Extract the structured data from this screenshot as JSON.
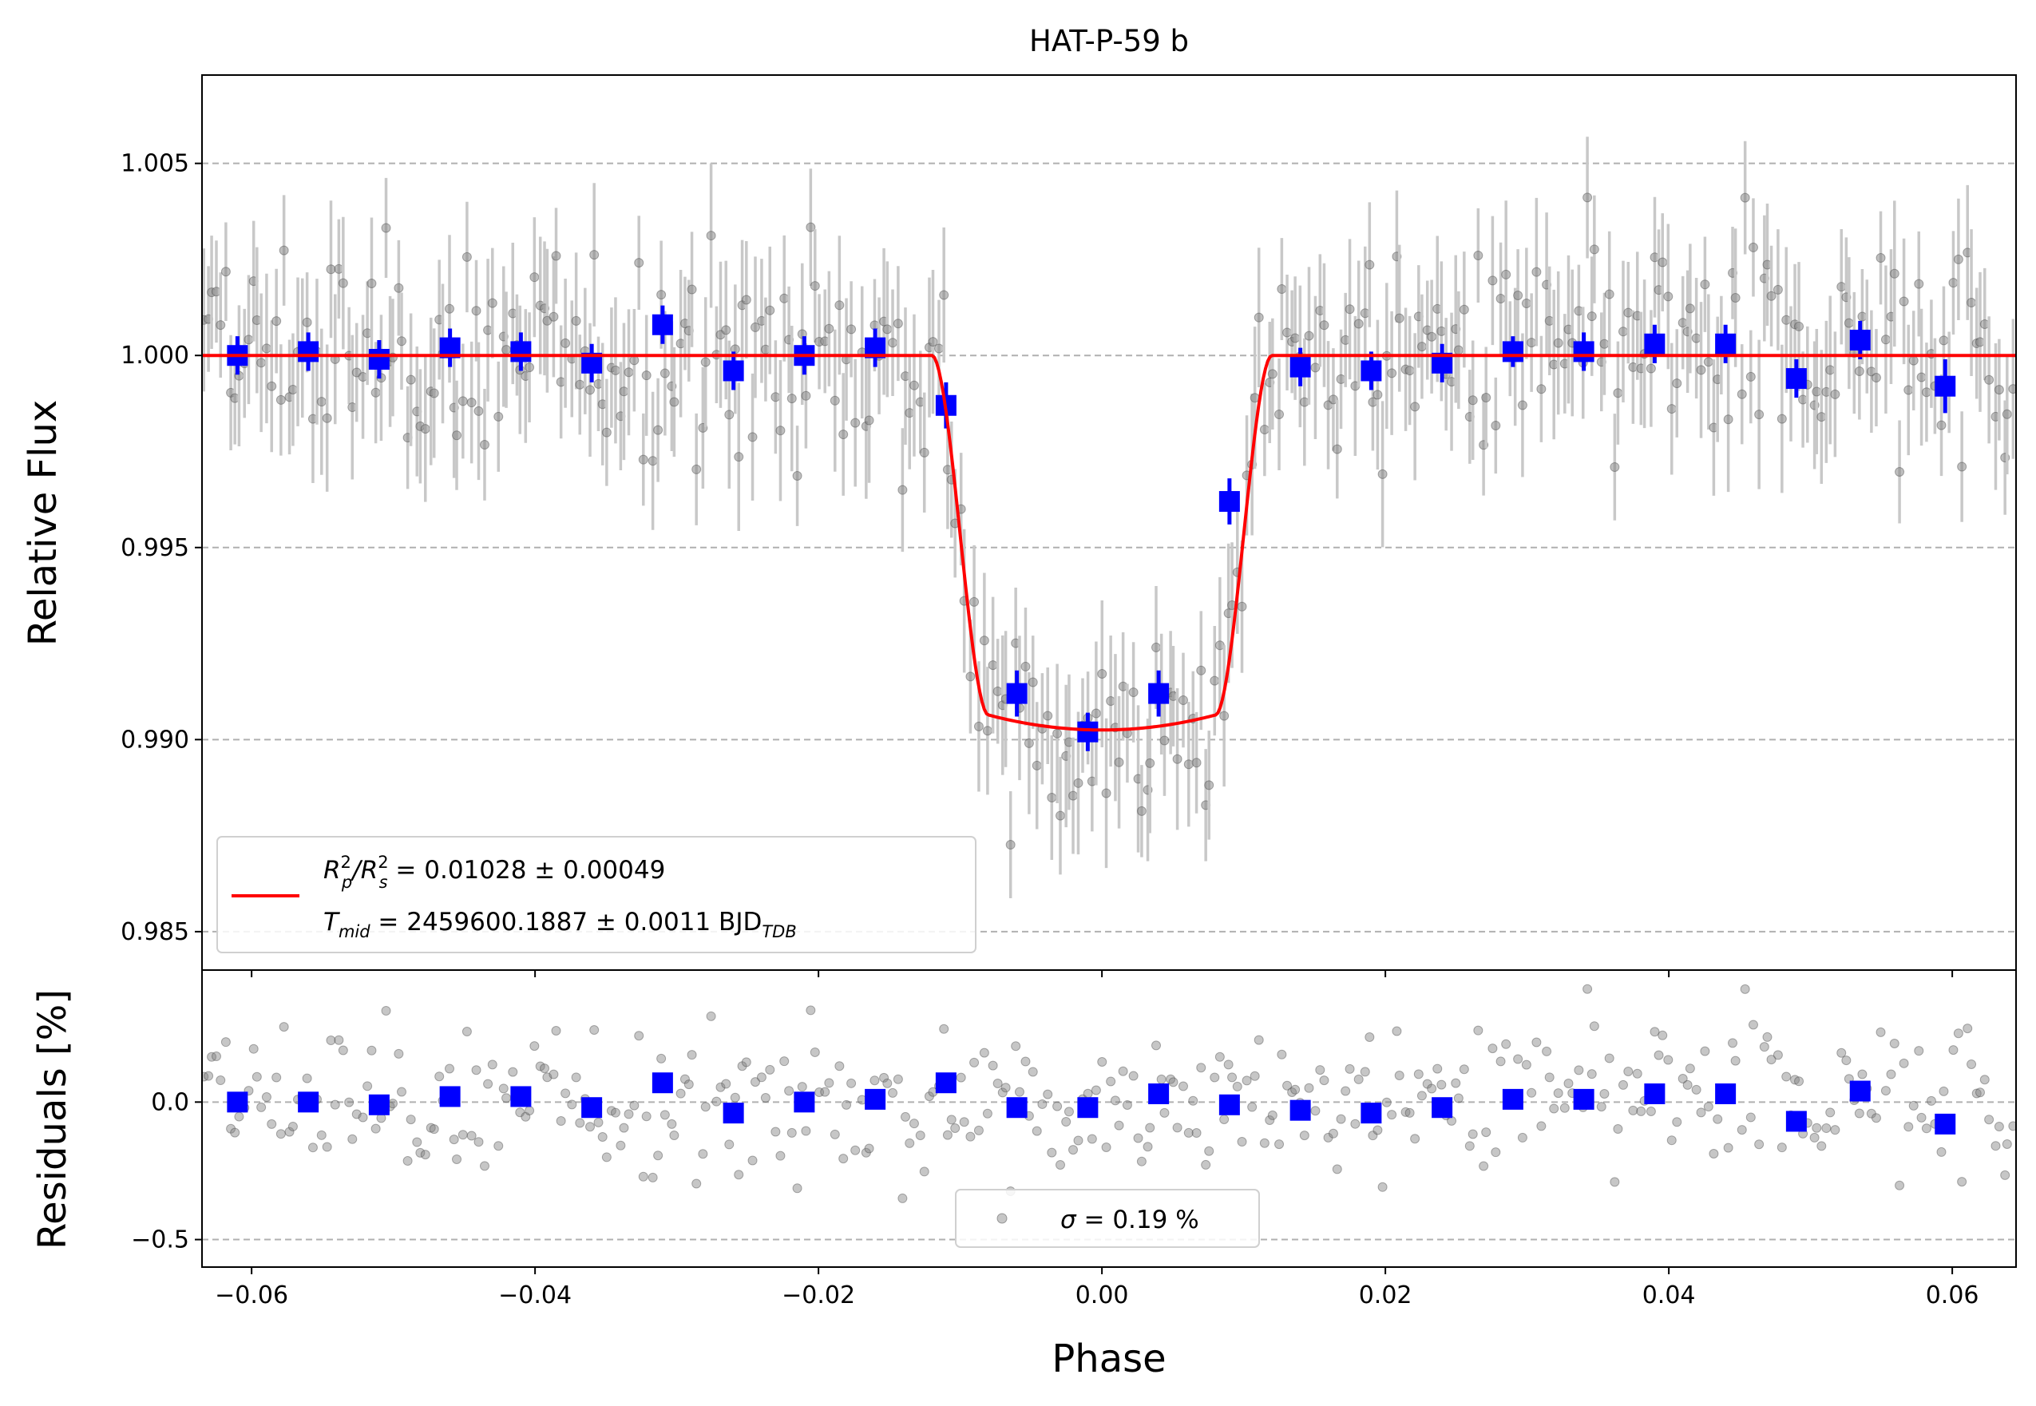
{
  "chart_data": {
    "type": "scatter",
    "title": "HAT-P-59 b",
    "xlabel": "Phase",
    "xlim": [
      -0.0635,
      0.0645
    ],
    "xticks": [
      "−0.06",
      "−0.04",
      "−0.02",
      "0.00",
      "0.02",
      "0.04",
      "0.06"
    ],
    "xtick_values": [
      -0.06,
      -0.04,
      -0.02,
      0.0,
      0.02,
      0.04,
      0.06
    ],
    "grid": "horizontal dashed",
    "panels": [
      {
        "name": "flux",
        "ylabel": "Relative Flux",
        "ylim": [
          0.984,
          1.0073
        ],
        "yticks": [
          "0.985",
          "0.990",
          "0.995",
          "1.000",
          "1.005"
        ],
        "ytick_values": [
          0.985,
          0.99,
          0.995,
          1.0,
          1.005
        ],
        "binned": {
          "phase": [
            -0.061,
            -0.056,
            -0.051,
            -0.046,
            -0.041,
            -0.036,
            -0.031,
            -0.026,
            -0.021,
            -0.016,
            -0.011,
            -0.006,
            -0.001,
            0.004,
            0.009,
            0.014,
            0.019,
            0.024,
            0.029,
            0.034,
            0.039,
            0.044,
            0.049,
            0.0535,
            0.0595
          ],
          "flux": [
            1.0,
            1.0001,
            0.9999,
            1.0002,
            1.0001,
            0.9998,
            1.0008,
            0.9996,
            1.0,
            1.0002,
            0.9987,
            0.9912,
            0.9902,
            0.9912,
            0.9962,
            0.9997,
            0.9996,
            0.9998,
            1.0001,
            1.0001,
            1.0003,
            1.0003,
            0.9994,
            1.0004,
            0.9992
          ],
          "error": [
            0.0005,
            0.0005,
            0.0005,
            0.0005,
            0.0005,
            0.0005,
            0.0005,
            0.0005,
            0.0005,
            0.0005,
            0.0006,
            0.0006,
            0.0005,
            0.0006,
            0.0006,
            0.0005,
            0.0005,
            0.0005,
            0.0004,
            0.0005,
            0.0005,
            0.0005,
            0.0005,
            0.0005,
            0.0007
          ]
        },
        "model": {
          "name": "transit model",
          "depth": 0.00975,
          "t1": -0.012,
          "t2": -0.0075,
          "t3": 0.008,
          "t4": 0.012,
          "phase_range": [
            -0.0635,
            0.0645
          ]
        },
        "raw_points": {
          "phase_range": [
            -0.0635,
            0.0645
          ],
          "point_count": 400,
          "typical_error": 0.0015,
          "scatter": 0.0019
        },
        "legend": {
          "position": "lower-left",
          "line1_main": "R",
          "line1_sup_p": "2",
          "line1_sub_p": "p",
          "line1_slash": "/R",
          "line1_sup_s": "2",
          "line1_sub_s": "s",
          "line1_value": " = 0.01028 ± 0.00049",
          "line2_main": "T",
          "line2_sub": "mid",
          "line2_value": " = 2459600.1887 ± 0.0011 BJD",
          "line2_unit_sub": "TDB"
        }
      },
      {
        "name": "residuals",
        "ylabel": "Residuals [%]",
        "ylim": [
          -0.6,
          0.48
        ],
        "yticks": [
          "−0.5",
          "0.0"
        ],
        "ytick_values": [
          -0.5,
          0.0
        ],
        "binned_residuals": [
          0.0,
          0.0,
          -0.01,
          0.02,
          0.02,
          -0.02,
          0.07,
          -0.04,
          0.0,
          0.01,
          0.07,
          -0.02,
          -0.02,
          0.03,
          -0.01,
          -0.03,
          -0.04,
          -0.02,
          0.01,
          0.01,
          0.03,
          0.03,
          -0.07,
          0.04,
          -0.08
        ],
        "legend": {
          "position": "lower-center",
          "sigma_symbol": "σ",
          "sigma_text": " = 0.19 %"
        }
      }
    ],
    "colors": {
      "raw": "#808080",
      "raw_error": "#c8c8c8",
      "binned": "#0000ff",
      "model": "#ff0000",
      "grid": "#b0b0b0"
    }
  }
}
